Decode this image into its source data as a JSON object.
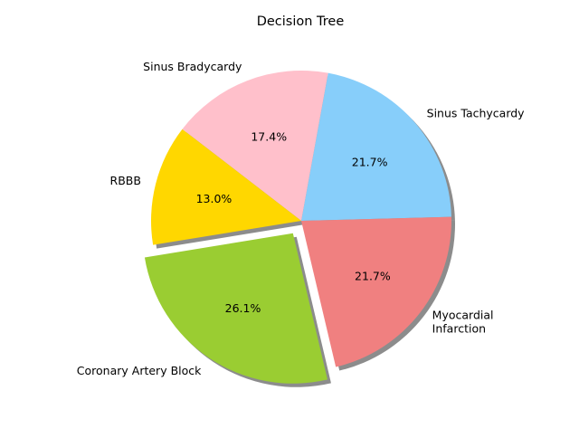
{
  "chart_data": {
    "type": "pie",
    "title": "Decision Tree",
    "slices": [
      {
        "label": "Sinus Tachycardy",
        "value": 21.7,
        "pct_label": "21.7%",
        "color": "#87CEFA"
      },
      {
        "label": "Sinus Bradycardy",
        "value": 17.4,
        "pct_label": "17.4%",
        "color": "#FFC0CB"
      },
      {
        "label": "RBBB",
        "value": 13.0,
        "pct_label": "13.0%",
        "color": "#FFD700"
      },
      {
        "label": "Coronary Artery Block",
        "value": 26.1,
        "pct_label": "26.1%",
        "color": "#9ACD32",
        "exploded": true
      },
      {
        "label": "Myocardial\nInfarction",
        "value": 21.7,
        "pct_label": "21.7%",
        "color": "#F08080"
      }
    ],
    "start_angle_deg": 1.5,
    "shadow": true,
    "legend": "none"
  }
}
